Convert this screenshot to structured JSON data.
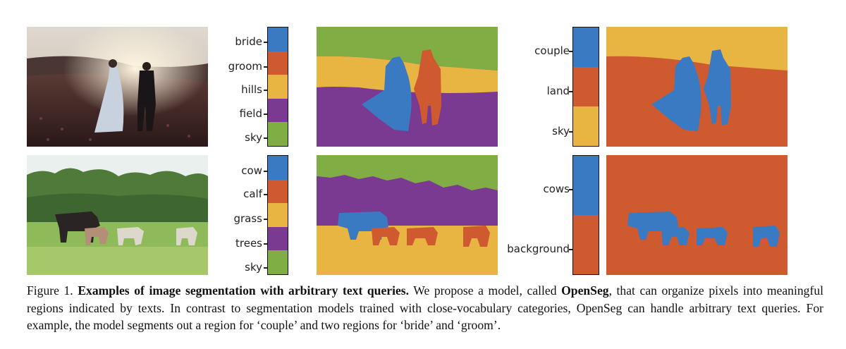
{
  "colors": {
    "blue": "#3a7ac2",
    "orange": "#cf5a30",
    "yellow": "#e8b542",
    "purple": "#7a3a91",
    "green": "#80ad44"
  },
  "row1": {
    "labels": [
      "bride",
      "groom",
      "hills",
      "field",
      "sky"
    ],
    "labels2": [
      "couple",
      "land",
      "sky"
    ]
  },
  "row2": {
    "labels": [
      "cow",
      "calf",
      "grass",
      "trees",
      "sky"
    ],
    "labels2": [
      "cows",
      "background"
    ]
  },
  "caption": {
    "fig": "Figure 1.",
    "bold": "Examples of image segmentation with arbitrary text queries.",
    "text1": " We propose a model, called ",
    "model": "OpenSeg",
    "text2": ", that can organize pixels into meaningful regions indicated by texts.  In contrast to segmentation models trained with close-vocabulary categories, OpenSeg can handle arbitrary text queries. For example, the model segments out a region for ‘couple’ and two regions for ‘bride’ and ‘groom’."
  }
}
